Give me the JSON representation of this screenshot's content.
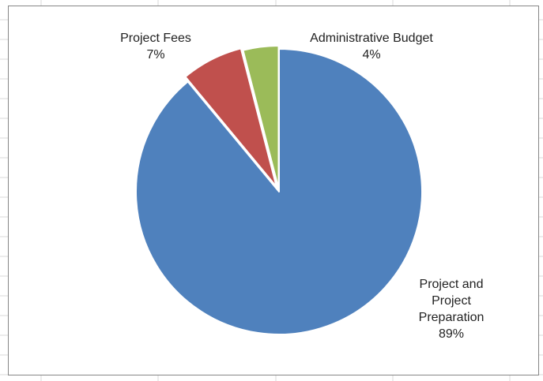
{
  "chart_data": {
    "type": "pie",
    "title": "",
    "start_angle_deg": 0,
    "direction": "clockwise",
    "slices": [
      {
        "label": [
          "Project and",
          "Project",
          "Preparation"
        ],
        "value": 89,
        "value_label": "89%",
        "color": "#4F81BD"
      },
      {
        "label": [
          "Project Fees"
        ],
        "value": 7,
        "value_label": "7%",
        "color": "#C0504D"
      },
      {
        "label": [
          "Administrative Budget"
        ],
        "value": 4,
        "value_label": "4%",
        "color": "#9BBB59"
      }
    ],
    "legend": "none"
  },
  "colors": {
    "frame_border": "#868686",
    "gridline": "#D9D9D9",
    "slice_separator": "#ffffff"
  }
}
